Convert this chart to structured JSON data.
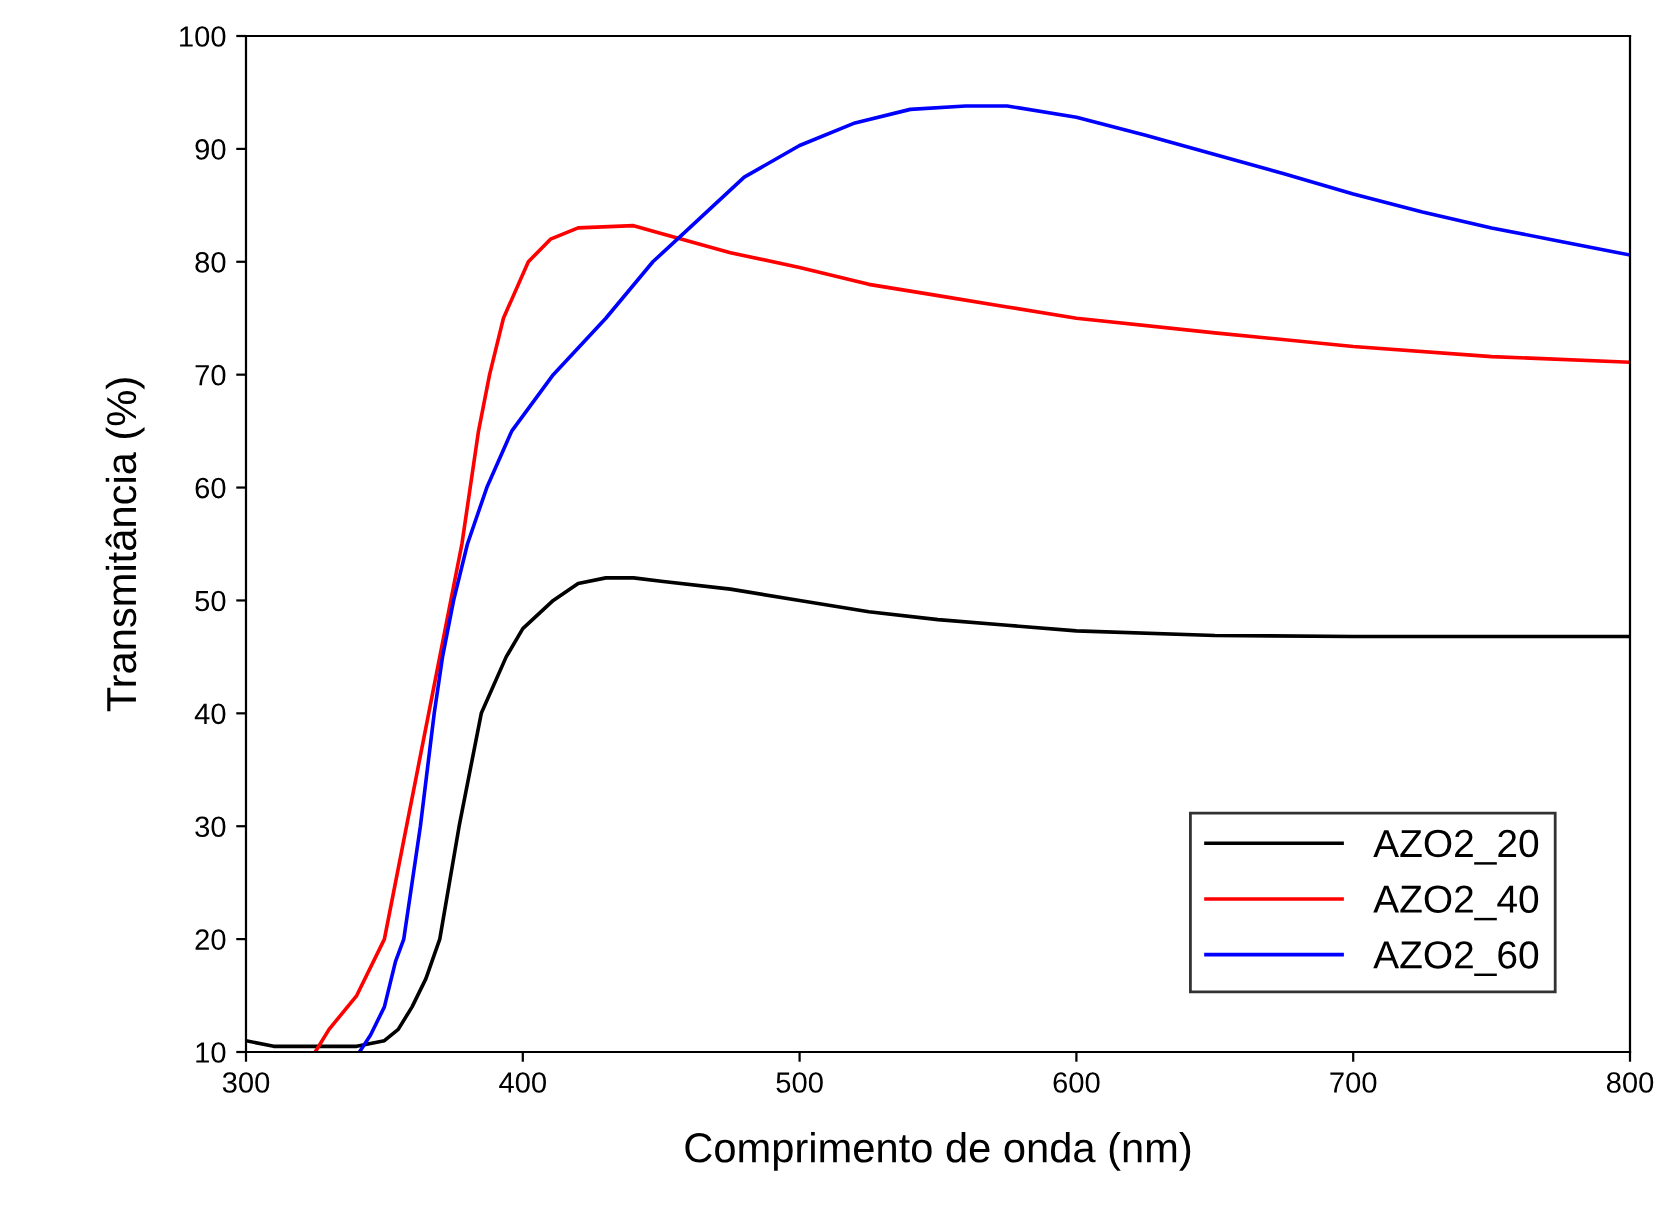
{
  "chart_data": {
    "type": "line",
    "xlabel": "Comprimento de onda (nm)",
    "ylabel": "Transmitância (%)",
    "xlim": [
      300,
      800
    ],
    "xticks": [
      300,
      400,
      500,
      600,
      700,
      800
    ],
    "ylim": [
      10,
      100
    ],
    "yticks": [
      10,
      20,
      30,
      40,
      50,
      60,
      70,
      80,
      90,
      100
    ],
    "grid": false,
    "legend": "bottom right",
    "marker": "none",
    "line_style": "solid",
    "series": [
      {
        "name": "AZO2_20",
        "color": "#000000",
        "x": [
          300,
          310,
          340,
          350,
          355,
          360,
          365,
          370,
          377,
          385,
          394,
          400,
          411,
          420,
          430,
          440,
          450,
          475,
          500,
          525,
          550,
          575,
          600,
          650,
          700,
          800
        ],
        "values": [
          11,
          10.5,
          10.5,
          11,
          12,
          14,
          16.5,
          20,
          30,
          40,
          45,
          47.5,
          50,
          51.5,
          52,
          52,
          51.7,
          51,
          50,
          49,
          48.3,
          47.8,
          47.3,
          46.9,
          46.8,
          46.8
        ]
      },
      {
        "name": "AZO2_40",
        "color": "#ff0000",
        "x": [
          325,
          330,
          340,
          350,
          358,
          362,
          366,
          370,
          374,
          378,
          381,
          384,
          388,
          393,
          402,
          410,
          420,
          440,
          450,
          475,
          500,
          525,
          550,
          575,
          600,
          650,
          700,
          750,
          800
        ],
        "values": [
          10,
          12,
          15,
          20,
          30,
          35,
          40,
          45,
          50,
          55,
          60,
          65,
          70,
          75,
          80,
          82,
          83,
          83.2,
          82.5,
          80.8,
          79.5,
          78,
          77,
          76,
          75,
          73.7,
          72.5,
          71.6,
          71.1
        ]
      },
      {
        "name": "AZO2_60",
        "color": "#0000ff",
        "x": [
          341,
          345,
          350,
          354,
          357,
          360,
          363,
          365.5,
          368,
          371,
          375,
          380,
          387,
          396,
          411,
          430,
          447,
          458,
          480,
          500,
          520,
          540,
          560,
          575,
          600,
          625,
          650,
          675,
          700,
          725,
          750,
          775,
          800
        ],
        "values": [
          10,
          11.5,
          14,
          18,
          20,
          25,
          30,
          35,
          40,
          45,
          50,
          55,
          60,
          65,
          70,
          75,
          80,
          82.5,
          87.5,
          90.3,
          92.3,
          93.5,
          93.8,
          93.8,
          92.8,
          91.2,
          89.5,
          87.8,
          86,
          84.4,
          83,
          81.8,
          80.6
        ]
      }
    ]
  }
}
